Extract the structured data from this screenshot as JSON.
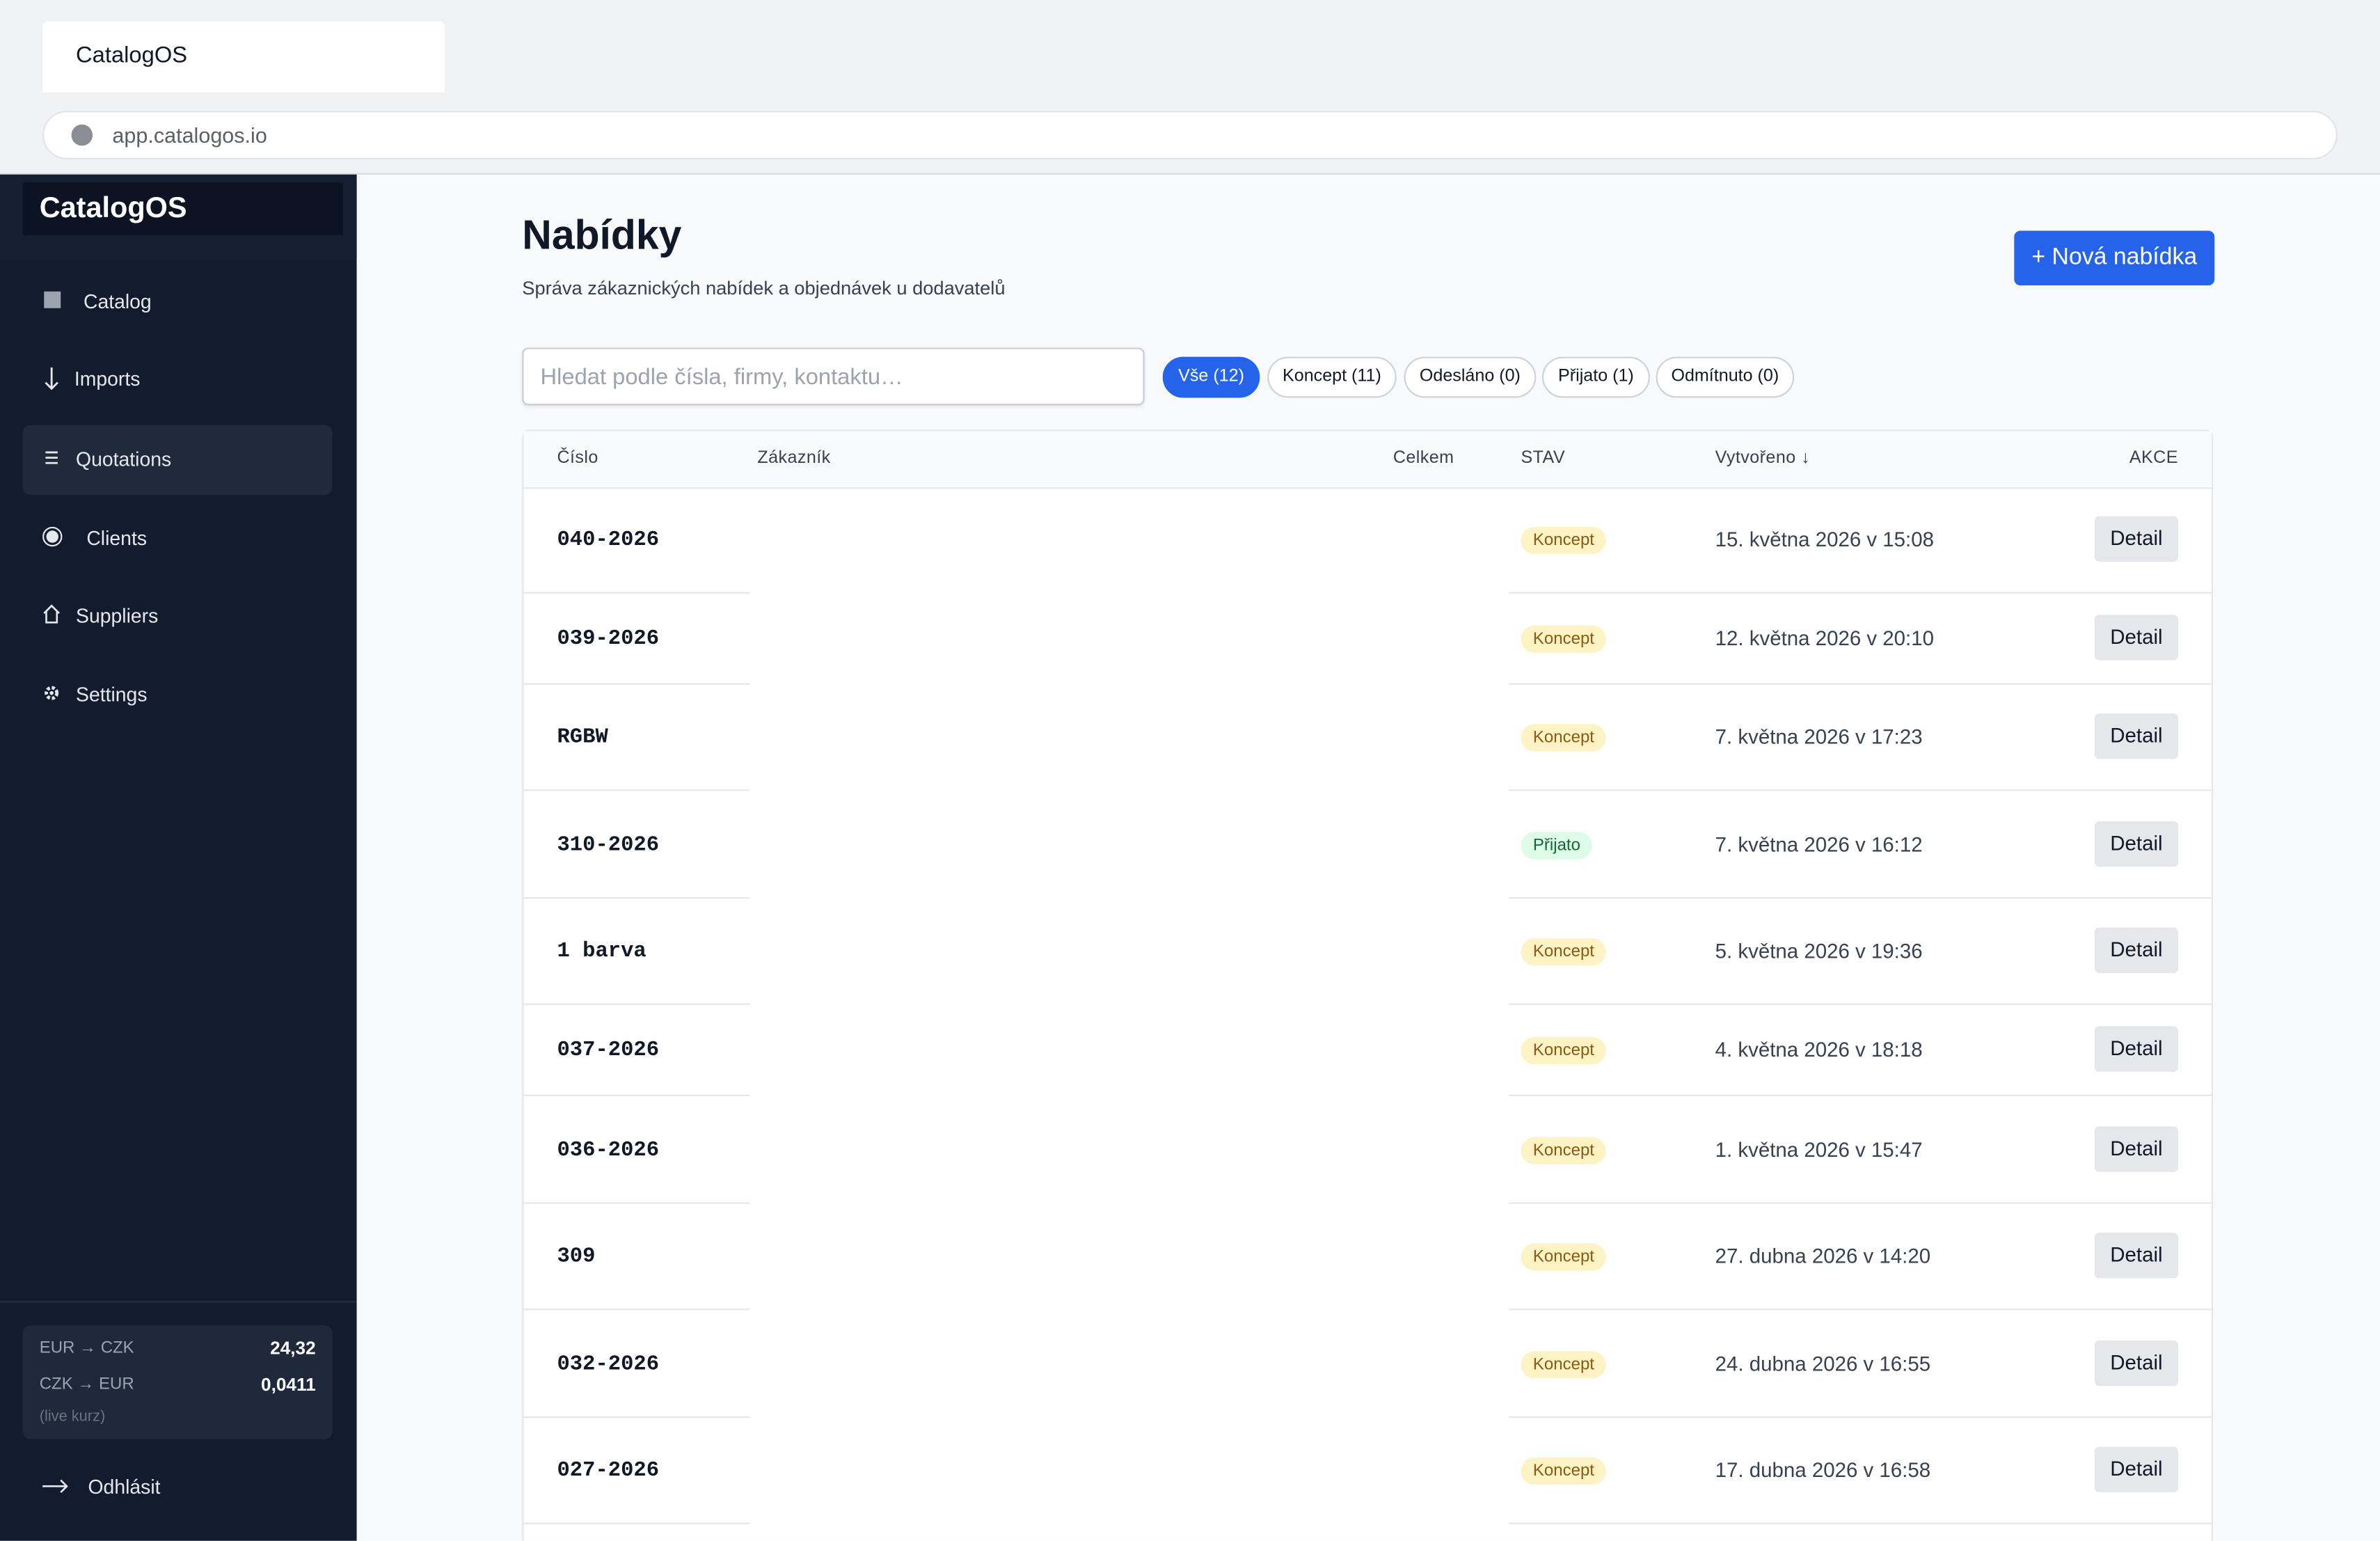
{
  "browser": {
    "tab_title": "CatalogOS",
    "url": "app.catalogos.io"
  },
  "sidebar": {
    "brand": "CatalogOS",
    "nav": [
      "Catalog",
      "Imports",
      "Quotations",
      "Clients",
      "Suppliers",
      "Settings"
    ],
    "active": 2,
    "rates": [
      {
        "label": "EUR → CZK",
        "value": "24,32"
      },
      {
        "label": "CZK → EUR",
        "value": "0,0411"
      }
    ],
    "rates_note": "(live kurz)",
    "logout": "Odhlásit"
  },
  "header": {
    "title": "Nabídky",
    "subtitle": "Správa zákaznických nabídek a objednávek u dodavatelů",
    "button": "+ Nová nabídka"
  },
  "search": {
    "placeholder": "Hledat podle čísla, firmy, kontaktu…"
  },
  "filters": [
    "Vše (12)",
    "Koncept (11)",
    "Odesláno (0)",
    "Přijato (1)",
    "Odmítnuto (0)"
  ],
  "active_filter": 0,
  "status_colors": {
    "Koncept": {
      "bg": "#fdf3c4",
      "fg": "#8a5a12"
    },
    "Přijato": {
      "bg": "#dcfce7",
      "fg": "#166534"
    }
  },
  "table": {
    "columns": [
      "Číslo",
      "Zákazník",
      "Celkem",
      "STAV",
      "Vytvořeno ↓",
      "AKCE"
    ],
    "rows": [
      [
        "040-2026",
        "Koncept",
        "15. května 2026 v 15:08",
        "Detail"
      ],
      [
        "039-2026",
        "Koncept",
        "12. května 2026 v 20:10",
        "Detail"
      ],
      [
        "RGBW",
        "Koncept",
        "7. května 2026 v 17:23",
        "Detail"
      ],
      [
        "310-2026",
        "Přijato",
        "7. května 2026 v 16:12",
        "Detail"
      ],
      [
        "1 barva",
        "Koncept",
        "5. května 2026 v 19:36",
        "Detail"
      ],
      [
        "037-2026",
        "Koncept",
        "4. května 2026 v 18:18",
        "Detail"
      ],
      [
        "036-2026",
        "Koncept",
        "1. května 2026 v 15:47",
        "Detail"
      ],
      [
        "309",
        "Koncept",
        "27. dubna 2026 v 14:20",
        "Detail"
      ],
      [
        "032-2026",
        "Koncept",
        "24. dubna 2026 v 16:55",
        "Detail"
      ],
      [
        "027-2026",
        "Koncept",
        "17. dubna 2026 v 16:58",
        "Detail"
      ]
    ]
  }
}
